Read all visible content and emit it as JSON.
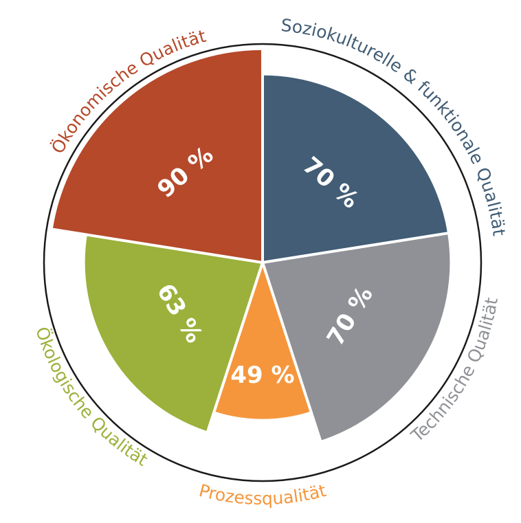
{
  "chart_data": {
    "type": "polar",
    "categories": [
      "Soziokulturelle & funktionale Qualität",
      "Technische Qualität",
      "Prozessqualität",
      "Ökologische Qualität",
      "Ökonomische Qualität"
    ],
    "values": [
      70,
      70,
      49,
      63,
      90
    ],
    "value_labels": [
      "70 %",
      "70 %",
      "49 %",
      "63 %",
      "90 %"
    ],
    "weights": [
      22.5,
      22.5,
      10,
      22.5,
      22.5
    ],
    "colors": [
      "#425d75",
      "#8f9196",
      "#f5963c",
      "#9bb13b",
      "#b5492a"
    ],
    "rlim": [
      0,
      100
    ]
  }
}
